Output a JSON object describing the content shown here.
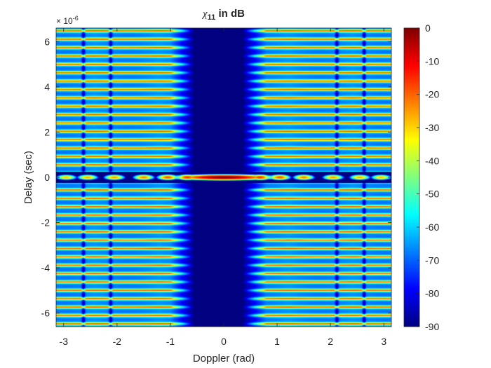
{
  "chart_data": {
    "type": "heatmap",
    "title": {
      "symbol": "χ",
      "subscript": "11",
      "suffix": " in dB"
    },
    "xlabel": "Doppler (rad)",
    "ylabel": "Delay (sec)",
    "xlim": [
      -3.1416,
      3.1416
    ],
    "ylim": [
      6.6,
      -6.6
    ],
    "y_reversed": true,
    "y_exponent_label": {
      "base": "× 10",
      "power": "-6"
    },
    "xticks": [
      -3,
      -2,
      -1,
      0,
      1,
      2,
      3
    ],
    "xtick_labels": [
      "-3",
      "-2",
      "-1",
      "0",
      "1",
      "2",
      "3"
    ],
    "yticks": [
      -6,
      -4,
      -2,
      0,
      2,
      4,
      6
    ],
    "ytick_labels": [
      "-6",
      "-4",
      "-2",
      "0",
      "2",
      "4",
      "6"
    ],
    "colorbar": {
      "colormap": "jet",
      "range": [
        -90,
        0
      ],
      "ticks": [
        0,
        -10,
        -20,
        -30,
        -40,
        -50,
        -60,
        -70,
        -80,
        -90
      ],
      "tick_labels": [
        "0",
        "-10",
        "-20",
        "-30",
        "-40",
        "-50",
        "-60",
        "-70",
        "-80",
        "-90"
      ]
    },
    "surface": {
      "description_free": true,
      "floor_db": -90,
      "peak_db": 0,
      "peak_location": {
        "doppler": 0,
        "delay": 0
      },
      "mainlobe_halfwidth_rad": 0.44,
      "zero_delay_lobes_doppler": [
        0.68,
        1.05,
        1.5,
        2.05,
        2.55,
        2.95
      ],
      "zero_delay_lobe_db": [
        -15,
        -18,
        -22,
        -24,
        -26,
        -28
      ],
      "vertical_nulls_doppler": [
        -2.63,
        -2.12,
        2.12,
        2.63
      ],
      "sidelobe_region_inner_edge_rad": [
        0.8,
        0.6
      ],
      "sidelobe_delay_period_us": 0.37,
      "sidelobe_peak_db": -18
    }
  }
}
